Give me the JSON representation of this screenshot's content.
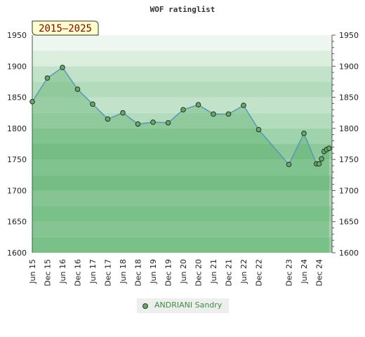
{
  "chart_data": {
    "type": "line",
    "title": "WOF ratinglist",
    "period_badge": "2015–2025",
    "ylim": [
      1600,
      1950
    ],
    "y_ticks": [
      1600,
      1650,
      1700,
      1750,
      1800,
      1850,
      1900,
      1950
    ],
    "y_axis_sides": [
      "left",
      "right"
    ],
    "x_tick_labels": [
      "Jun 15",
      "Dec 15",
      "Jun 16",
      "Dec 16",
      "Jun 17",
      "Dec 17",
      "Jun 18",
      "Dec 18",
      "Jun 19",
      "Dec 19",
      "Jun 20",
      "Dec 20",
      "Jun 21",
      "Dec 21",
      "Jun 22",
      "Dec 22",
      "Dec 23",
      "Jun 24",
      "Dec 24"
    ],
    "grid": false,
    "legend_position": "bottom-center",
    "series": [
      {
        "name": "ANDRIANI Sandry",
        "color": "#5599bb",
        "marker_color": "#6aa86a",
        "points": [
          {
            "x": "Jun 15",
            "y": 1843
          },
          {
            "x": "Dec 15",
            "y": 1881
          },
          {
            "x": "Jun 16",
            "y": 1898
          },
          {
            "x": "Dec 16",
            "y": 1863
          },
          {
            "x": "Jun 17",
            "y": 1839
          },
          {
            "x": "Dec 17",
            "y": 1815
          },
          {
            "x": "Jun 18",
            "y": 1825
          },
          {
            "x": "Dec 18",
            "y": 1807
          },
          {
            "x": "Jun 19",
            "y": 1810
          },
          {
            "x": "Dec 19",
            "y": 1809
          },
          {
            "x": "Jun 20",
            "y": 1830
          },
          {
            "x": "Dec 20",
            "y": 1838
          },
          {
            "x": "Jun 21",
            "y": 1823
          },
          {
            "x": "Dec 21",
            "y": 1823
          },
          {
            "x": "Jun 22",
            "y": 1837
          },
          {
            "x": "Dec 22",
            "y": 1798
          },
          {
            "x": "Dec 23",
            "y": 1742
          },
          {
            "x": "Jun 24",
            "y": 1792
          },
          {
            "x": "Nov 24",
            "y": 1743
          },
          {
            "x": "Dec 24",
            "y": 1743
          },
          {
            "x": "Jan 25",
            "y": 1751
          },
          {
            "x": "Feb 25",
            "y": 1763
          },
          {
            "x": "Mar 25",
            "y": 1766
          },
          {
            "x": "Apr 25",
            "y": 1768
          }
        ]
      }
    ]
  }
}
